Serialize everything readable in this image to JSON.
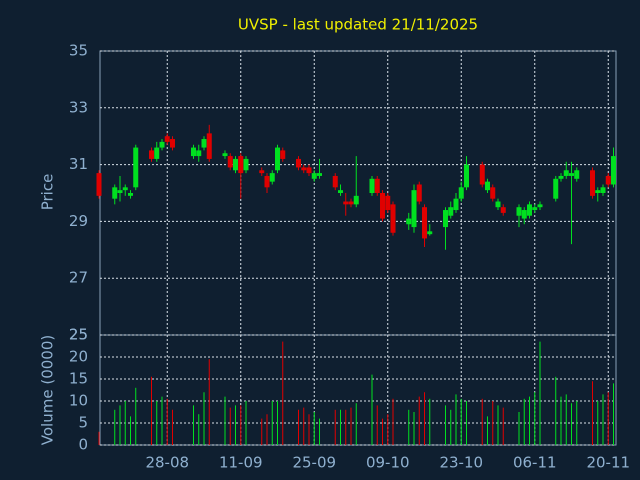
{
  "chart_data": {
    "type": "candlestick",
    "title": "UVSP - last updated 21/11/2025",
    "y_label": "Price",
    "y2_label": "Volume (0000)",
    "up_color": "#00e020",
    "down_color": "#e00000",
    "grid": true,
    "x": [
      "15-08",
      "18-08",
      "19-08",
      "20-08",
      "21-08",
      "22-08",
      "25-08",
      "26-08",
      "27-08",
      "28-08",
      "29-08",
      "02-09",
      "03-09",
      "04-09",
      "05-09",
      "08-09",
      "09-09",
      "10-09",
      "11-09",
      "12-09",
      "15-09",
      "16-09",
      "17-09",
      "18-09",
      "19-09",
      "22-09",
      "23-09",
      "24-09",
      "25-09",
      "26-09",
      "29-09",
      "30-09",
      "01-10",
      "02-10",
      "03-10",
      "06-10",
      "07-10",
      "08-10",
      "09-10",
      "10-10",
      "13-10",
      "14-10",
      "15-10",
      "16-10",
      "17-10",
      "20-10",
      "21-10",
      "22-10",
      "23-10",
      "24-10",
      "27-10",
      "28-10",
      "29-10",
      "30-10",
      "31-10",
      "03-11",
      "04-11",
      "05-11",
      "06-11",
      "07-11",
      "10-11",
      "11-11",
      "12-11",
      "13-11",
      "14-11",
      "17-11",
      "18-11",
      "19-11",
      "20-11",
      "21-11"
    ],
    "xticks": [
      "28-08",
      "11-09",
      "25-09",
      "09-10",
      "23-10",
      "06-11",
      "20-11"
    ],
    "open": [
      30.7,
      29.8,
      30.0,
      30.1,
      29.9,
      30.2,
      31.5,
      31.2,
      31.6,
      32.0,
      31.9,
      31.3,
      31.3,
      31.6,
      32.1,
      31.3,
      31.3,
      30.8,
      31.3,
      30.8,
      30.8,
      30.6,
      30.4,
      30.8,
      31.5,
      31.2,
      30.9,
      30.9,
      30.5,
      30.6,
      30.6,
      30.0,
      29.7,
      29.7,
      29.6,
      30.0,
      30.5,
      30.0,
      29.9,
      29.6,
      28.9,
      28.8,
      30.3,
      29.5,
      28.55,
      28.8,
      29.2,
      29.4,
      29.8,
      30.2,
      31.0,
      30.1,
      30.2,
      29.5,
      29.5,
      29.2,
      29.1,
      29.2,
      29.4,
      29.5,
      29.8,
      30.5,
      30.6,
      30.6,
      30.5,
      30.8,
      30.0,
      30.0,
      30.6,
      30.3
    ],
    "high": [
      30.8,
      30.3,
      30.6,
      30.3,
      30.1,
      31.7,
      31.6,
      31.8,
      31.9,
      32.1,
      32.0,
      31.7,
      31.7,
      32.0,
      32.4,
      31.5,
      31.4,
      31.3,
      31.4,
      31.3,
      30.9,
      30.7,
      30.8,
      31.7,
      31.6,
      31.3,
      31.0,
      31.0,
      30.8,
      31.2,
      30.7,
      30.3,
      30.0,
      29.8,
      31.3,
      30.6,
      30.6,
      30.1,
      30.0,
      29.7,
      29.3,
      30.3,
      30.4,
      29.6,
      28.9,
      29.5,
      29.7,
      30.0,
      30.4,
      31.3,
      31.1,
      30.5,
      30.3,
      29.8,
      29.6,
      29.6,
      29.5,
      29.7,
      29.6,
      29.7,
      30.6,
      30.7,
      31.1,
      31.1,
      30.9,
      30.9,
      30.2,
      30.3,
      30.7,
      31.6
    ],
    "low": [
      29.8,
      29.6,
      29.7,
      29.9,
      29.8,
      30.1,
      31.1,
      31.1,
      31.5,
      31.7,
      31.5,
      31.2,
      31.1,
      31.5,
      31.1,
      31.2,
      30.8,
      30.7,
      29.8,
      30.7,
      30.6,
      30.0,
      30.3,
      30.7,
      31.1,
      30.8,
      30.7,
      30.6,
      30.4,
      30.5,
      30.1,
      29.9,
      29.2,
      29.5,
      29.5,
      29.9,
      29.9,
      29.0,
      29.3,
      28.5,
      28.7,
      28.6,
      29.6,
      28.1,
      28.5,
      28.0,
      29.1,
      29.3,
      29.7,
      30.1,
      30.2,
      30.0,
      29.7,
      29.4,
      29.2,
      28.8,
      28.9,
      29.1,
      29.3,
      29.4,
      29.7,
      30.4,
      30.5,
      28.2,
      30.4,
      29.8,
      29.7,
      29.9,
      30.2,
      30.2
    ],
    "close": [
      29.9,
      30.2,
      30.1,
      30.2,
      30.0,
      31.6,
      31.2,
      31.6,
      31.8,
      31.8,
      31.6,
      31.6,
      31.5,
      31.9,
      31.2,
      31.4,
      30.9,
      31.2,
      30.7,
      31.2,
      30.7,
      30.2,
      30.7,
      31.6,
      31.2,
      30.9,
      30.8,
      30.7,
      30.7,
      30.7,
      30.2,
      30.1,
      29.6,
      29.6,
      29.9,
      30.5,
      30.0,
      29.1,
      29.4,
      28.6,
      29.1,
      30.1,
      29.7,
      28.4,
      28.65,
      29.4,
      29.5,
      29.8,
      30.2,
      31.0,
      30.3,
      30.4,
      29.8,
      29.7,
      29.3,
      29.5,
      29.4,
      29.6,
      29.5,
      29.6,
      30.5,
      30.6,
      30.8,
      30.7,
      30.8,
      29.9,
      30.1,
      30.2,
      30.3,
      31.3
    ],
    "volume": [
      3,
      8,
      9,
      10,
      6.5,
      13,
      15.5,
      10,
      11,
      10.5,
      8,
      9,
      7,
      12,
      19.5,
      11,
      8.5,
      9,
      9,
      10,
      6,
      7,
      10,
      10,
      23.5,
      8,
      8.5,
      7,
      7.5,
      6,
      8,
      8,
      8,
      8.5,
      9.5,
      16,
      9,
      6,
      7,
      10.5,
      8,
      7.5,
      11,
      12,
      10.5,
      9,
      8,
      11.5,
      10.5,
      10,
      10.5,
      6.5,
      10,
      9,
      8.5,
      7.5,
      10.5,
      11,
      12,
      23.5,
      15.5,
      11,
      11.5,
      9.5,
      10,
      14.5,
      10,
      11.5,
      12,
      14
    ],
    "ylim": [
      25,
      35
    ],
    "yticks": [
      25,
      27,
      29,
      31,
      33,
      35
    ],
    "y2lim": [
      0,
      25
    ],
    "y2ticks": [
      0,
      5,
      10,
      15,
      20,
      25
    ]
  }
}
